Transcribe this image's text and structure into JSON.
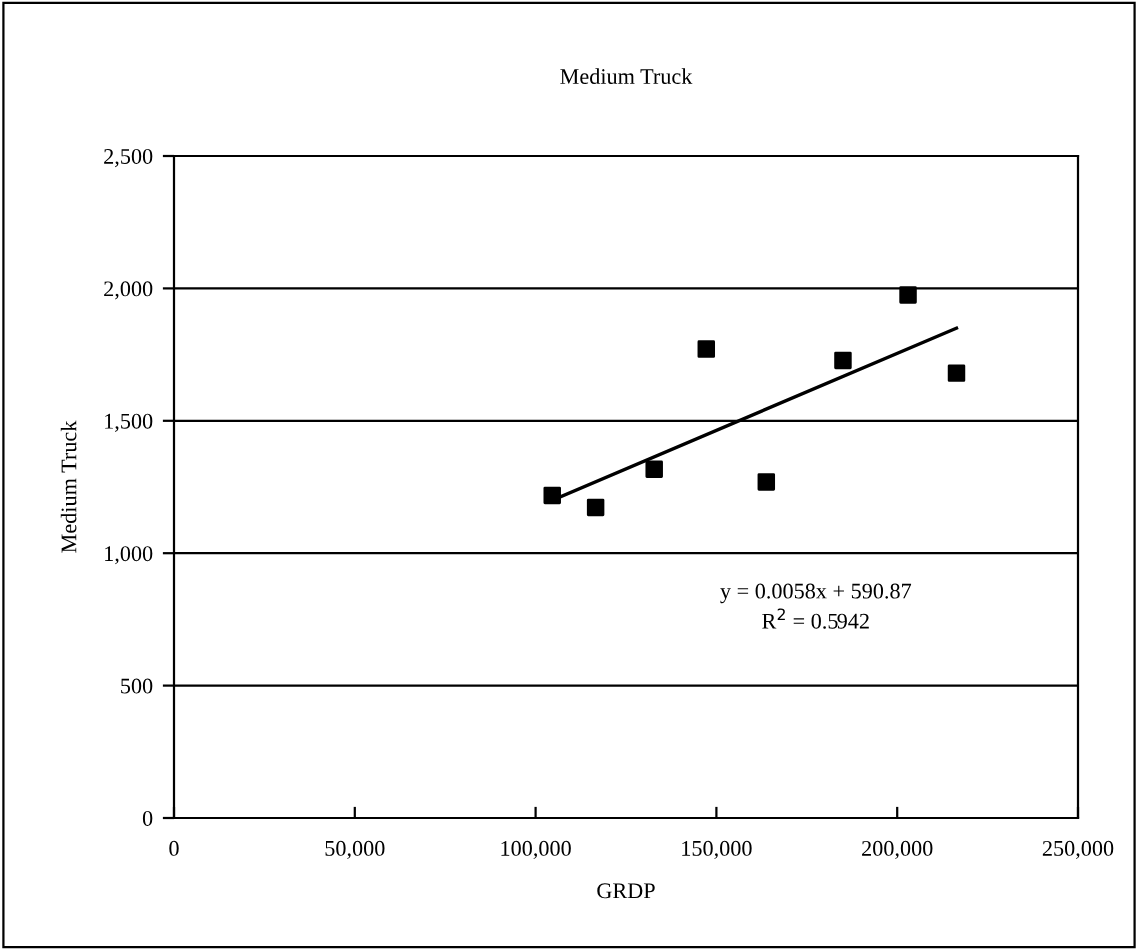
{
  "chart_data": {
    "type": "scatter",
    "title": "Medium Truck",
    "xlabel": "GRDP",
    "ylabel": "Medium Truck",
    "series": [
      {
        "color": "#000000",
        "marker": "square",
        "x": [
          104600,
          116600,
          132800,
          147200,
          163800,
          185000,
          203000,
          216400
        ],
        "values": [
          1218,
          1173,
          1317,
          1771,
          1269,
          1728,
          1975,
          1680
        ]
      },
      {
        "type": "line",
        "color": "#000000",
        "marker": "none",
        "x": [
          104600,
          216400
        ],
        "values": [
          1200,
          1850
        ]
      }
    ],
    "annotations": [
      "y = 0.0058x + 590.87\nR$^{2}$ = 0.5942"
    ],
    "xlim": [
      0,
      250000
    ],
    "xticks": [
      {
        "value": 0,
        "label": "0"
      },
      {
        "value": 50000,
        "label": "50,000"
      },
      {
        "value": 100000,
        "label": "100,000"
      },
      {
        "value": 150000,
        "label": "150,000"
      },
      {
        "value": 200000,
        "label": "200,000"
      },
      {
        "value": 250000,
        "label": "250,000"
      }
    ],
    "ylim": [
      0,
      2500
    ],
    "yticks": [
      {
        "value": 0,
        "label": "0"
      },
      {
        "value": 500,
        "label": "500"
      },
      {
        "value": 1000,
        "label": "1,000"
      },
      {
        "value": 1500,
        "label": "1,500"
      },
      {
        "value": 2000,
        "label": "2,000"
      },
      {
        "value": 2500,
        "label": "2,500"
      }
    ],
    "grid": "y",
    "legend": false
  }
}
